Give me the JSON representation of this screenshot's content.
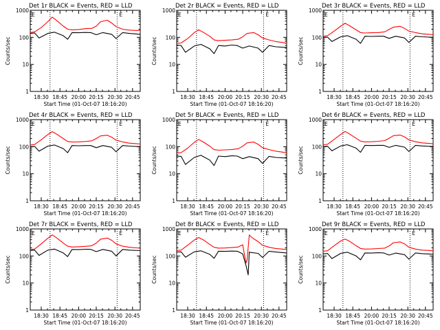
{
  "chart_data": [
    {
      "type": "line",
      "title": "Det 1r BLACK = Events, RED = LLD",
      "xlabel": "Start Time (01-Oct-07 18:16:20)",
      "ylabel": "Counts/sec",
      "yscale": "log",
      "ylim": [
        1,
        1000
      ],
      "xticks": [
        "18:30",
        "18:45",
        "20:00",
        "20:15",
        "20:30",
        "20:45"
      ],
      "yticks": [
        "1",
        "10",
        "100",
        "1000"
      ],
      "corner_marks": [
        "E",
        "E"
      ],
      "series": [
        {
          "color": "#ff0000",
          "x": [
            0,
            0.04,
            0.1,
            0.16,
            0.2,
            0.24,
            0.3,
            0.34,
            0.38,
            0.44,
            0.5,
            0.56,
            0.6,
            0.64,
            0.7,
            0.74,
            0.78,
            0.84,
            0.9,
            0.96,
            1.0
          ],
          "y": [
            150,
            160,
            230,
            380,
            560,
            420,
            260,
            200,
            190,
            195,
            210,
            215,
            260,
            380,
            430,
            340,
            250,
            200,
            185,
            180,
            180
          ]
        },
        {
          "color": "#000000",
          "x": [
            0,
            0.04,
            0.08,
            0.16,
            0.22,
            0.3,
            0.34,
            0.38,
            0.44,
            0.5,
            0.55,
            0.6,
            0.66,
            0.74,
            0.78,
            0.84,
            0.9,
            1.0
          ],
          "y": [
            140,
            145,
            95,
            140,
            155,
            115,
            85,
            150,
            148,
            152,
            150,
            125,
            150,
            130,
            90,
            150,
            140,
            130
          ]
        }
      ]
    },
    {
      "type": "line",
      "title": "Det 2r BLACK = Events, RED = LLD",
      "xlabel": "Start Time (01-Oct-07 18:16:20)",
      "ylabel": "Counts/sec",
      "yscale": "log",
      "ylim": [
        1,
        1000
      ],
      "xticks": [
        "18:30",
        "18:45",
        "20:00",
        "20:15",
        "20:30",
        "20:45"
      ],
      "yticks": [
        "1",
        "10",
        "100",
        "1000"
      ],
      "corner_marks": [
        "E",
        "E"
      ],
      "series": [
        {
          "color": "#ff0000",
          "x": [
            0,
            0.04,
            0.1,
            0.16,
            0.2,
            0.24,
            0.3,
            0.34,
            0.38,
            0.44,
            0.5,
            0.56,
            0.6,
            0.64,
            0.7,
            0.74,
            0.78,
            0.84,
            0.9,
            0.96,
            1.0
          ],
          "y": [
            60,
            62,
            90,
            150,
            190,
            155,
            110,
            80,
            75,
            78,
            80,
            85,
            105,
            140,
            150,
            125,
            95,
            80,
            70,
            65,
            60
          ]
        },
        {
          "color": "#000000",
          "x": [
            0,
            0.04,
            0.08,
            0.16,
            0.22,
            0.3,
            0.34,
            0.38,
            0.44,
            0.5,
            0.55,
            0.6,
            0.66,
            0.74,
            0.78,
            0.84,
            0.9,
            1.0
          ],
          "y": [
            52,
            50,
            28,
            48,
            55,
            38,
            25,
            50,
            48,
            52,
            50,
            40,
            48,
            40,
            28,
            50,
            45,
            42
          ]
        }
      ]
    },
    {
      "type": "line",
      "title": "Det 3r BLACK = Events, RED = LLD",
      "xlabel": "Start Time (01-Oct-07 18:16:20)",
      "ylabel": "Counts/sec",
      "yscale": "log",
      "ylim": [
        1,
        1000
      ],
      "xticks": [
        "18:30",
        "18:45",
        "20:00",
        "20:15",
        "20:30",
        "20:45"
      ],
      "yticks": [
        "1",
        "10",
        "100",
        "1000"
      ],
      "corner_marks": [
        "E",
        "E"
      ],
      "series": [
        {
          "color": "#ff0000",
          "x": [
            0,
            0.04,
            0.1,
            0.16,
            0.2,
            0.24,
            0.3,
            0.34,
            0.38,
            0.44,
            0.5,
            0.56,
            0.6,
            0.64,
            0.7,
            0.74,
            0.78,
            0.84,
            0.9,
            0.96,
            1.0
          ],
          "y": [
            110,
            115,
            170,
            260,
            330,
            270,
            190,
            150,
            145,
            148,
            150,
            160,
            195,
            240,
            255,
            215,
            170,
            150,
            135,
            130,
            125
          ]
        },
        {
          "color": "#000000",
          "x": [
            0,
            0.04,
            0.08,
            0.16,
            0.22,
            0.3,
            0.34,
            0.38,
            0.44,
            0.5,
            0.55,
            0.6,
            0.66,
            0.74,
            0.78,
            0.84,
            0.9,
            1.0
          ],
          "y": [
            100,
            102,
            70,
            105,
            115,
            85,
            60,
            110,
            108,
            110,
            110,
            92,
            110,
            95,
            65,
            110,
            105,
            100
          ]
        }
      ]
    },
    {
      "type": "line",
      "title": "Det 4r BLACK = Events, RED = LLD",
      "xlabel": "Start Time (01-Oct-07 18:16:20)",
      "ylabel": "Counts/sec",
      "yscale": "log",
      "ylim": [
        1,
        1000
      ],
      "xticks": [
        "18:30",
        "18:45",
        "20:00",
        "20:15",
        "20:30",
        "20:45"
      ],
      "yticks": [
        "1",
        "10",
        "100",
        "1000"
      ],
      "corner_marks": [
        "E",
        "E"
      ],
      "series": [
        {
          "color": "#ff0000",
          "x": [
            0,
            0.04,
            0.1,
            0.16,
            0.2,
            0.24,
            0.3,
            0.34,
            0.38,
            0.44,
            0.5,
            0.56,
            0.6,
            0.64,
            0.7,
            0.74,
            0.78,
            0.84,
            0.9,
            0.96,
            1.0
          ],
          "y": [
            115,
            120,
            180,
            280,
            360,
            290,
            200,
            155,
            148,
            150,
            155,
            165,
            200,
            250,
            265,
            225,
            175,
            150,
            135,
            130,
            125
          ]
        },
        {
          "color": "#000000",
          "x": [
            0,
            0.04,
            0.08,
            0.16,
            0.22,
            0.3,
            0.34,
            0.38,
            0.44,
            0.5,
            0.55,
            0.6,
            0.66,
            0.74,
            0.78,
            0.84,
            0.9,
            1.0
          ],
          "y": [
            100,
            102,
            68,
            105,
            115,
            85,
            60,
            110,
            108,
            110,
            110,
            92,
            110,
            95,
            65,
            110,
            105,
            100
          ]
        }
      ]
    },
    {
      "type": "line",
      "title": "Det 5r BLACK = Events, RED = LLD",
      "xlabel": "Start Time (01-Oct-07 18:16:20)",
      "ylabel": "Counts/sec",
      "yscale": "log",
      "ylim": [
        1,
        1000
      ],
      "xticks": [
        "18:30",
        "18:45",
        "20:00",
        "20:15",
        "20:30",
        "20:45"
      ],
      "yticks": [
        "1",
        "10",
        "100",
        "1000"
      ],
      "corner_marks": [
        "E",
        "E"
      ],
      "series": [
        {
          "color": "#ff0000",
          "x": [
            0,
            0.04,
            0.1,
            0.16,
            0.2,
            0.24,
            0.3,
            0.34,
            0.38,
            0.44,
            0.5,
            0.56,
            0.6,
            0.64,
            0.7,
            0.74,
            0.78,
            0.84,
            0.9,
            0.96,
            1.0
          ],
          "y": [
            58,
            60,
            88,
            145,
            185,
            150,
            105,
            78,
            74,
            76,
            78,
            84,
            104,
            138,
            148,
            122,
            92,
            78,
            68,
            63,
            58
          ]
        },
        {
          "color": "#000000",
          "x": [
            0,
            0.04,
            0.08,
            0.16,
            0.22,
            0.3,
            0.34,
            0.38,
            0.44,
            0.5,
            0.55,
            0.6,
            0.66,
            0.74,
            0.78,
            0.84,
            0.9,
            1.0
          ],
          "y": [
            45,
            44,
            22,
            40,
            48,
            32,
            20,
            45,
            43,
            46,
            45,
            36,
            43,
            36,
            24,
            44,
            40,
            38
          ]
        }
      ]
    },
    {
      "type": "line",
      "title": "Det 6r BLACK = Events, RED = LLD",
      "xlabel": "Start Time (01-Oct-07 18:16:20)",
      "ylabel": "Counts/sec",
      "yscale": "log",
      "ylim": [
        1,
        1000
      ],
      "xticks": [
        "18:30",
        "18:45",
        "20:00",
        "20:15",
        "20:30",
        "20:45"
      ],
      "yticks": [
        "1",
        "10",
        "100",
        "1000"
      ],
      "corner_marks": [
        "E",
        "E"
      ],
      "series": [
        {
          "color": "#ff0000",
          "x": [
            0,
            0.04,
            0.1,
            0.16,
            0.2,
            0.24,
            0.3,
            0.34,
            0.38,
            0.44,
            0.5,
            0.56,
            0.6,
            0.64,
            0.7,
            0.74,
            0.78,
            0.84,
            0.9,
            0.96,
            1.0
          ],
          "y": [
            118,
            122,
            185,
            285,
            365,
            295,
            205,
            160,
            150,
            152,
            158,
            168,
            205,
            255,
            270,
            230,
            178,
            152,
            138,
            132,
            128
          ]
        },
        {
          "color": "#000000",
          "x": [
            0,
            0.04,
            0.08,
            0.16,
            0.22,
            0.3,
            0.34,
            0.38,
            0.44,
            0.5,
            0.55,
            0.6,
            0.66,
            0.74,
            0.78,
            0.84,
            0.9,
            1.0
          ],
          "y": [
            102,
            104,
            70,
            106,
            118,
            88,
            62,
            112,
            110,
            112,
            112,
            94,
            112,
            96,
            66,
            112,
            106,
            102
          ]
        }
      ]
    },
    {
      "type": "line",
      "title": "Det 7r BLACK = Events, RED = LLD",
      "xlabel": "Start Time (01-Oct-07 18:16:20)",
      "ylabel": "Counts/sec",
      "yscale": "log",
      "ylim": [
        1,
        1000
      ],
      "xticks": [
        "18:30",
        "18:45",
        "20:00",
        "20:15",
        "20:30",
        "20:45"
      ],
      "yticks": [
        "1",
        "10",
        "100",
        "1000"
      ],
      "corner_marks": [
        "E",
        "E"
      ],
      "series": [
        {
          "color": "#ff0000",
          "x": [
            0,
            0.04,
            0.1,
            0.16,
            0.2,
            0.24,
            0.3,
            0.34,
            0.38,
            0.44,
            0.5,
            0.56,
            0.6,
            0.64,
            0.7,
            0.74,
            0.78,
            0.84,
            0.9,
            0.96,
            1.0
          ],
          "y": [
            175,
            180,
            280,
            450,
            600,
            470,
            300,
            230,
            215,
            220,
            228,
            240,
            300,
            420,
            460,
            380,
            280,
            230,
            210,
            200,
            195
          ]
        },
        {
          "color": "#000000",
          "x": [
            0,
            0.04,
            0.08,
            0.16,
            0.22,
            0.3,
            0.34,
            0.38,
            0.44,
            0.5,
            0.55,
            0.6,
            0.66,
            0.74,
            0.78,
            0.84,
            0.9,
            1.0
          ],
          "y": [
            160,
            165,
            105,
            165,
            180,
            130,
            95,
            175,
            172,
            178,
            176,
            145,
            175,
            150,
            100,
            175,
            165,
            158
          ]
        }
      ]
    },
    {
      "type": "line",
      "title": "Det 8r BLACK = Events, RED = LLD",
      "xlabel": "Start Time (01-Oct-07 18:16:20)",
      "ylabel": "Counts/sec",
      "yscale": "log",
      "ylim": [
        1,
        1000
      ],
      "xticks": [
        "18:30",
        "18:45",
        "20:00",
        "20:15",
        "20:30",
        "20:45"
      ],
      "yticks": [
        "1",
        "10",
        "100",
        "1000"
      ],
      "corner_marks": [
        "E",
        "E"
      ],
      "series": [
        {
          "color": "#ff0000",
          "x": [
            0,
            0.04,
            0.1,
            0.16,
            0.2,
            0.24,
            0.3,
            0.34,
            0.38,
            0.44,
            0.5,
            0.56,
            0.6,
            0.63,
            0.64,
            0.66,
            0.67,
            0.7,
            0.74,
            0.78,
            0.84,
            0.9,
            0.96,
            1.0
          ],
          "y": [
            160,
            165,
            250,
            390,
            480,
            400,
            270,
            210,
            195,
            198,
            205,
            215,
            260,
            55,
            70,
            600,
            540,
            430,
            340,
            250,
            210,
            190,
            180,
            175
          ]
        },
        {
          "color": "#000000",
          "x": [
            0,
            0.04,
            0.08,
            0.16,
            0.22,
            0.3,
            0.34,
            0.38,
            0.44,
            0.5,
            0.55,
            0.6,
            0.63,
            0.65,
            0.66,
            0.67,
            0.74,
            0.78,
            0.84,
            0.9,
            1.0
          ],
          "y": [
            140,
            142,
            90,
            142,
            155,
            115,
            82,
            150,
            148,
            152,
            150,
            120,
            45,
            20,
            140,
            135,
            125,
            88,
            150,
            140,
            130
          ]
        }
      ]
    },
    {
      "type": "line",
      "title": "Det 9r BLACK = Events, RED = LLD",
      "xlabel": "Start Time (01-Oct-07 18:16:20)",
      "ylabel": "Counts/sec",
      "yscale": "log",
      "ylim": [
        1,
        1000
      ],
      "xticks": [
        "18:30",
        "18:45",
        "20:00",
        "20:15",
        "20:30",
        "20:45"
      ],
      "yticks": [
        "1",
        "10",
        "100",
        "1000"
      ],
      "corner_marks": [
        "E",
        "E"
      ],
      "series": [
        {
          "color": "#ff0000",
          "x": [
            0,
            0.04,
            0.1,
            0.16,
            0.2,
            0.24,
            0.3,
            0.34,
            0.38,
            0.44,
            0.5,
            0.56,
            0.6,
            0.64,
            0.7,
            0.74,
            0.78,
            0.84,
            0.9,
            0.96,
            1.0
          ],
          "y": [
            150,
            155,
            240,
            360,
            420,
            350,
            240,
            190,
            180,
            182,
            188,
            195,
            235,
            310,
            330,
            280,
            210,
            180,
            165,
            160,
            155
          ]
        },
        {
          "color": "#000000",
          "x": [
            0,
            0.04,
            0.08,
            0.16,
            0.22,
            0.3,
            0.34,
            0.38,
            0.44,
            0.5,
            0.55,
            0.6,
            0.66,
            0.74,
            0.78,
            0.84,
            0.9,
            1.0
          ],
          "y": [
            120,
            124,
            80,
            125,
            138,
            100,
            72,
            130,
            128,
            132,
            130,
            108,
            128,
            112,
            76,
            130,
            122,
            116
          ]
        }
      ]
    }
  ]
}
